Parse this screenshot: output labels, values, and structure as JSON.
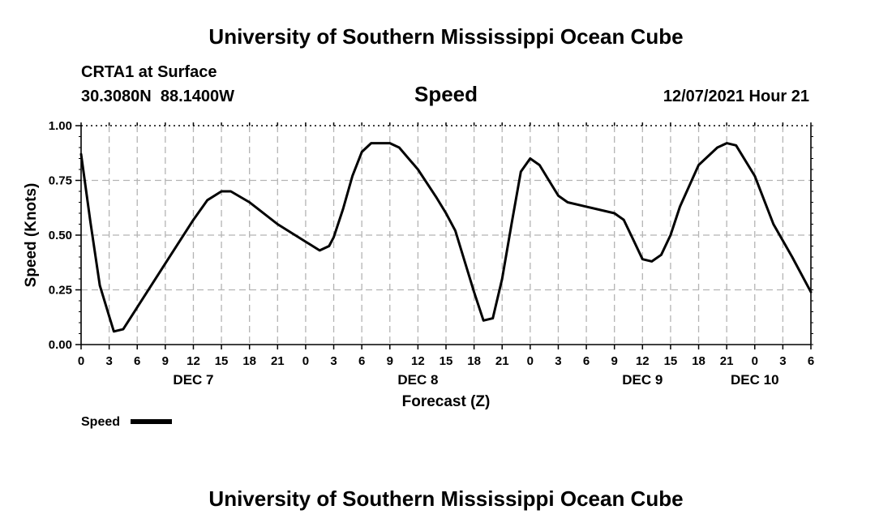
{
  "header": {
    "title": "University of Southern Mississippi Ocean Cube",
    "station": "CRTA1 at Surface",
    "location": "30.3080N  88.1400W",
    "timestamp": "12/07/2021 Hour 21"
  },
  "footer": {
    "title": "University of Southern Mississippi Ocean Cube"
  },
  "chart_data": {
    "type": "line",
    "title": "Speed",
    "xlabel": "Forecast (Z)",
    "ylabel": "Speed (Knots)",
    "x_unit": "hours from DEC 7 00Z",
    "xlim": [
      0,
      78
    ],
    "ylim": [
      0,
      1
    ],
    "grid": true,
    "y_ticks": [
      "0.00",
      "0.25",
      "0.50",
      "0.75",
      "1.00"
    ],
    "x_ticks": [
      {
        "hour": 0,
        "label": "0"
      },
      {
        "hour": 3,
        "label": "3"
      },
      {
        "hour": 6,
        "label": "6"
      },
      {
        "hour": 9,
        "label": "9"
      },
      {
        "hour": 12,
        "label": "12"
      },
      {
        "hour": 15,
        "label": "15"
      },
      {
        "hour": 18,
        "label": "18"
      },
      {
        "hour": 21,
        "label": "21"
      },
      {
        "hour": 24,
        "label": "0"
      },
      {
        "hour": 27,
        "label": "3"
      },
      {
        "hour": 30,
        "label": "6"
      },
      {
        "hour": 33,
        "label": "9"
      },
      {
        "hour": 36,
        "label": "12"
      },
      {
        "hour": 39,
        "label": "15"
      },
      {
        "hour": 42,
        "label": "18"
      },
      {
        "hour": 45,
        "label": "21"
      },
      {
        "hour": 48,
        "label": "0"
      },
      {
        "hour": 51,
        "label": "3"
      },
      {
        "hour": 54,
        "label": "6"
      },
      {
        "hour": 57,
        "label": "9"
      },
      {
        "hour": 60,
        "label": "12"
      },
      {
        "hour": 63,
        "label": "15"
      },
      {
        "hour": 66,
        "label": "18"
      },
      {
        "hour": 69,
        "label": "21"
      },
      {
        "hour": 72,
        "label": "0"
      },
      {
        "hour": 75,
        "label": "3"
      },
      {
        "hour": 78,
        "label": "6"
      }
    ],
    "day_labels": [
      {
        "hour": 12,
        "label": "DEC 7"
      },
      {
        "hour": 36,
        "label": "DEC 8"
      },
      {
        "hour": 60,
        "label": "DEC 9"
      },
      {
        "hour": 72,
        "label": "DEC 10"
      }
    ],
    "legend": {
      "label": "Speed",
      "placement": "bottom-left"
    },
    "series": [
      {
        "name": "Speed",
        "color": "#000000",
        "x": [
          0,
          1,
          2,
          3,
          3.5,
          4.5,
          6,
          9,
          12,
          13.5,
          15,
          16,
          18,
          21,
          24,
          25.5,
          26.5,
          27,
          28,
          29,
          30,
          31,
          32,
          33,
          34,
          36,
          38,
          39,
          40,
          42,
          43,
          44,
          45,
          46,
          47,
          48,
          49,
          50,
          51,
          52,
          54,
          57,
          58,
          59,
          60,
          61,
          62,
          63,
          64,
          66,
          68,
          69,
          70,
          72,
          74,
          76,
          78
        ],
        "y": [
          0.87,
          0.56,
          0.27,
          0.13,
          0.06,
          0.07,
          0.17,
          0.37,
          0.57,
          0.66,
          0.7,
          0.7,
          0.65,
          0.55,
          0.47,
          0.43,
          0.45,
          0.49,
          0.62,
          0.77,
          0.88,
          0.92,
          0.92,
          0.92,
          0.9,
          0.8,
          0.67,
          0.6,
          0.52,
          0.24,
          0.11,
          0.12,
          0.3,
          0.55,
          0.79,
          0.85,
          0.82,
          0.75,
          0.68,
          0.65,
          0.63,
          0.6,
          0.57,
          0.48,
          0.39,
          0.38,
          0.41,
          0.5,
          0.63,
          0.82,
          0.9,
          0.92,
          0.91,
          0.77,
          0.55,
          0.4,
          0.24
        ]
      }
    ]
  }
}
